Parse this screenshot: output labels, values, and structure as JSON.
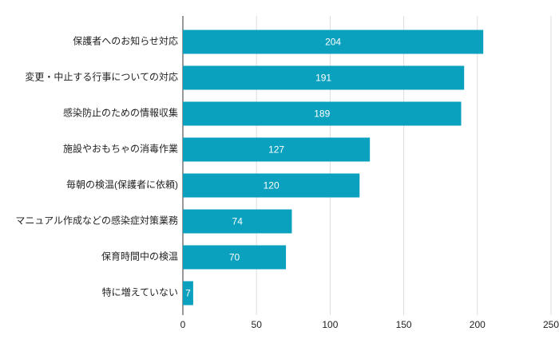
{
  "chart_data": {
    "type": "bar",
    "orientation": "horizontal",
    "categories": [
      "保護者へのお知らせ対応",
      "変更・中止する行事についての対応",
      "感染防止のための情報収集",
      "施設やおもちゃの消毒作業",
      "毎朝の検温(保護者に依頼)",
      "マニュアル作成などの感染症対策業務",
      "保育時間中の検温",
      "特に増えていない"
    ],
    "values": [
      204,
      191,
      189,
      127,
      120,
      74,
      70,
      7
    ],
    "color": "#0aa1bf",
    "xlim": [
      0,
      250
    ],
    "xticks": [
      0,
      50,
      100,
      150,
      200,
      250
    ],
    "grid": true
  }
}
